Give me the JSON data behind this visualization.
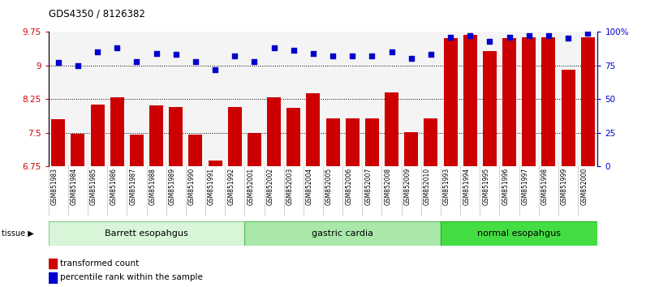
{
  "title": "GDS4350 / 8126382",
  "samples": [
    "GSM851983",
    "GSM851984",
    "GSM851985",
    "GSM851986",
    "GSM851987",
    "GSM851988",
    "GSM851989",
    "GSM851990",
    "GSM851991",
    "GSM851992",
    "GSM852001",
    "GSM852002",
    "GSM852003",
    "GSM852004",
    "GSM852005",
    "GSM852006",
    "GSM852007",
    "GSM852008",
    "GSM852009",
    "GSM852010",
    "GSM851993",
    "GSM851994",
    "GSM851995",
    "GSM851996",
    "GSM851997",
    "GSM851998",
    "GSM851999",
    "GSM852000"
  ],
  "bar_values": [
    7.8,
    7.48,
    8.13,
    8.28,
    7.45,
    8.1,
    8.08,
    7.45,
    6.88,
    8.08,
    7.5,
    8.28,
    8.05,
    8.38,
    7.82,
    7.82,
    7.82,
    8.4,
    7.52,
    7.82,
    9.6,
    9.68,
    9.32,
    9.6,
    9.62,
    9.62,
    8.9,
    9.62
  ],
  "percentile_values": [
    77,
    75,
    85,
    88,
    78,
    84,
    83,
    78,
    72,
    82,
    78,
    88,
    86,
    84,
    82,
    82,
    82,
    85,
    80,
    83,
    96,
    97,
    93,
    96,
    97,
    97,
    95,
    99
  ],
  "groups": [
    {
      "label": "Barrett esopahgus",
      "start": 0,
      "end": 10,
      "color": "#d8f5d8",
      "border": "#88cc88"
    },
    {
      "label": "gastric cardia",
      "start": 10,
      "end": 20,
      "color": "#aae8aa",
      "border": "#55bb55"
    },
    {
      "label": "normal esopahgus",
      "start": 20,
      "end": 28,
      "color": "#44dd44",
      "border": "#22aa22"
    }
  ],
  "ylim_left": [
    6.75,
    9.75
  ],
  "ylim_right": [
    0,
    100
  ],
  "yticks_left": [
    6.75,
    7.5,
    8.25,
    9.0,
    9.75
  ],
  "yticks_right": [
    0,
    25,
    50,
    75,
    100
  ],
  "ytick_labels_left": [
    "6.75",
    "7.5",
    "8.25",
    "9",
    "9.75"
  ],
  "ytick_labels_right": [
    "0",
    "25",
    "50",
    "75",
    "100%"
  ],
  "bar_color": "#cc0000",
  "dot_color": "#0000cc",
  "dotted_lines": [
    7.5,
    8.25,
    9.0
  ],
  "legend_items": [
    {
      "color": "#cc0000",
      "label": "transformed count"
    },
    {
      "color": "#0000cc",
      "label": "percentile rank within the sample"
    }
  ]
}
